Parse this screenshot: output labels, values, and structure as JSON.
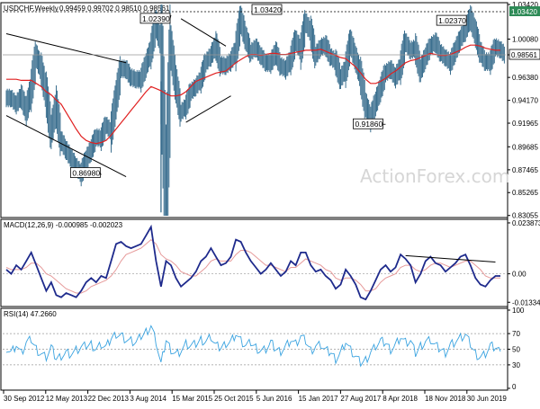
{
  "chart_data": {
    "type": "line",
    "header": {
      "symbol": "USDCHF,Weekly",
      "ohlc": "0.99459 0.99702 0.98510 0.98561"
    },
    "colors": {
      "bars": "#3b6f8f",
      "ma": "#e02020",
      "macd_line": "#1e2a8c",
      "macd_signal": "#e69a9a",
      "rsi": "#3aa3e0",
      "current_price_bg": "#ffffff",
      "top_level_bg": "#2e8b57"
    },
    "x_labels": [
      "30 Sep 2012",
      "12 May 2013",
      "22 Dec 2013",
      "3 Aug 2014",
      "15 Mar 2015",
      "25 Oct 2015",
      "5 Jun 2016",
      "15 Jan 2017",
      "27 Aug 2017",
      "8 Apr 2018",
      "18 Nov 2018",
      "30 Jun 2019"
    ],
    "price_panel": {
      "ylim": [
        0.8303,
        1.0342
      ],
      "y_ticks": [
        "1.03420",
        "1.00080",
        "0.98561",
        "0.96380",
        "0.94170",
        "0.91965",
        "0.89685",
        "0.87465",
        "0.85265",
        "0.83055"
      ],
      "y_tick_values": [
        1.0342,
        1.0008,
        0.98561,
        0.9638,
        0.9417,
        0.91965,
        0.89685,
        0.87465,
        0.85265,
        0.83055
      ],
      "current_price": "0.98561",
      "top_level": "1.03420",
      "annotations": [
        {
          "text": "1.02390",
          "x": 33,
          "y": 1.0239
        },
        {
          "text": "1.03420",
          "x": 55,
          "y": 1.0342
        },
        {
          "text": "1.02370",
          "x": 92,
          "y": 1.0237
        },
        {
          "text": "0.86980",
          "x": 19,
          "y": 0.8698
        },
        {
          "text": "0.91860",
          "x": 76,
          "y": 0.9186
        }
      ],
      "trendlines": [
        {
          "x": [
            0,
            24
          ],
          "y": [
            1.006,
            0.978
          ]
        },
        {
          "x": [
            0,
            24
          ],
          "y": [
            0.927,
            0.868
          ]
        },
        {
          "x": [
            35,
            44
          ],
          "y": [
            1.0205,
            0.994
          ]
        },
        {
          "x": [
            36,
            45
          ],
          "y": [
            0.9205,
            0.946
          ]
        }
      ],
      "close": [
        0.944,
        0.938,
        0.946,
        0.932,
        0.952,
        0.985,
        0.972,
        0.948,
        0.912,
        0.936,
        0.903,
        0.894,
        0.886,
        0.878,
        0.871,
        0.884,
        0.894,
        0.906,
        0.905,
        0.918,
        0.912,
        0.943,
        0.972,
        0.972,
        0.964,
        0.962,
        0.962,
        0.976,
        0.99,
        1.016,
        0.998,
        0.843,
        0.993,
        0.958,
        0.93,
        0.936,
        0.95,
        0.955,
        0.962,
        0.978,
        0.985,
        0.995,
        0.976,
        0.975,
        0.98,
        0.99,
        1.02,
        1.002,
        0.988,
        0.993,
        0.985,
        0.978,
        0.978,
        0.988,
        0.975,
        0.972,
        0.981,
        1.0,
        0.99,
        1.017,
        1.008,
        0.985,
        0.993,
        0.995,
        0.984,
        0.979,
        0.963,
        0.972,
        0.998,
        0.982,
        0.966,
        0.938,
        0.924,
        0.939,
        0.953,
        0.968,
        0.972,
        0.964,
        0.974,
        0.998,
        0.99,
        0.992,
        0.971,
        0.983,
        0.994,
        0.998,
        0.988,
        0.983,
        0.978,
        0.99,
        1.001,
        1.01,
        1.022,
        1.007,
        0.989,
        0.979,
        0.979,
        0.993,
        0.991,
        0.985
      ],
      "ma": [
        0.962,
        0.962,
        0.962,
        0.961,
        0.961,
        0.961,
        0.958,
        0.955,
        0.95,
        0.947,
        0.942,
        0.938,
        0.93,
        0.922,
        0.914,
        0.907,
        0.903,
        0.901,
        0.9,
        0.901,
        0.903,
        0.908,
        0.914,
        0.92,
        0.926,
        0.932,
        0.938,
        0.944,
        0.95,
        0.955,
        0.953,
        0.951,
        0.948,
        0.946,
        0.946,
        0.947,
        0.95,
        0.955,
        0.96,
        0.962,
        0.964,
        0.966,
        0.968,
        0.969,
        0.97,
        0.974,
        0.978,
        0.981,
        0.984,
        0.986,
        0.986,
        0.985,
        0.986,
        0.987,
        0.987,
        0.986,
        0.986,
        0.987,
        0.988,
        0.989,
        0.99,
        0.99,
        0.99,
        0.991,
        0.989,
        0.987,
        0.985,
        0.983,
        0.982,
        0.978,
        0.974,
        0.968,
        0.962,
        0.958,
        0.958,
        0.96,
        0.963,
        0.967,
        0.97,
        0.974,
        0.978,
        0.98,
        0.981,
        0.983,
        0.985,
        0.987,
        0.986,
        0.985,
        0.985,
        0.986,
        0.988,
        0.99,
        0.993,
        0.995,
        0.995,
        0.994,
        0.992,
        0.991,
        0.99,
        0.99
      ]
    },
    "macd_panel": {
      "label": "MACD(12,26,9) -0.000985 -0.002023",
      "ylim": [
        -0.0145,
        0.0247
      ],
      "y_ticks": [
        "0.023873",
        "0.00",
        "-0.013346"
      ],
      "y_tick_values": [
        0.023873,
        0.0,
        -0.013346
      ],
      "macd": [
        0.002,
        0.0,
        0.004,
        0.002,
        0.006,
        0.01,
        0.004,
        -0.002,
        -0.008,
        -0.004,
        -0.01,
        -0.011,
        -0.009,
        -0.01,
        -0.011,
        -0.008,
        -0.004,
        -0.002,
        -0.004,
        -0.001,
        -0.002,
        0.006,
        0.014,
        0.015,
        0.013,
        0.012,
        0.013,
        0.014,
        0.018,
        0.022,
        0.006,
        -0.006,
        0.006,
        0.004,
        -0.002,
        -0.006,
        -0.004,
        -0.002,
        0.001,
        0.006,
        0.008,
        0.012,
        0.008,
        0.004,
        0.005,
        0.008,
        0.016,
        0.015,
        0.01,
        0.006,
        0.003,
        0.0,
        0.002,
        0.005,
        0.002,
        -0.001,
        0.001,
        0.006,
        0.004,
        0.01,
        0.01,
        0.004,
        0.001,
        0.002,
        -0.001,
        -0.003,
        -0.007,
        -0.005,
        0.002,
        -0.001,
        -0.005,
        -0.011,
        -0.012,
        -0.008,
        -0.003,
        0.002,
        0.004,
        0.001,
        0.003,
        0.009,
        0.007,
        0.004,
        -0.004,
        0.0,
        0.006,
        0.008,
        0.005,
        0.004,
        0.001,
        0.003,
        0.005,
        0.008,
        0.009,
        0.004,
        -0.002,
        -0.005,
        -0.006,
        -0.003,
        -0.001,
        -0.001
      ],
      "signal": [
        0.003,
        0.002,
        0.002,
        0.002,
        0.003,
        0.005,
        0.005,
        0.003,
        0.0,
        -0.001,
        -0.003,
        -0.005,
        -0.007,
        -0.008,
        -0.009,
        -0.009,
        -0.008,
        -0.006,
        -0.005,
        -0.004,
        -0.003,
        -0.001,
        0.002,
        0.006,
        0.009,
        0.01,
        0.011,
        0.012,
        0.014,
        0.016,
        0.014,
        0.009,
        0.007,
        0.006,
        0.004,
        0.001,
        0.0,
        -0.001,
        -0.001,
        0.001,
        0.003,
        0.006,
        0.007,
        0.006,
        0.006,
        0.006,
        0.009,
        0.011,
        0.011,
        0.01,
        0.008,
        0.006,
        0.004,
        0.004,
        0.003,
        0.002,
        0.001,
        0.003,
        0.003,
        0.005,
        0.007,
        0.006,
        0.005,
        0.004,
        0.002,
        0.001,
        -0.002,
        -0.003,
        -0.002,
        -0.002,
        -0.003,
        -0.005,
        -0.008,
        -0.008,
        -0.007,
        -0.004,
        -0.002,
        -0.001,
        0.0,
        0.003,
        0.004,
        0.004,
        0.002,
        0.001,
        0.002,
        0.004,
        0.005,
        0.005,
        0.004,
        0.003,
        0.004,
        0.005,
        0.006,
        0.006,
        0.004,
        0.002,
        -0.001,
        -0.002,
        -0.002,
        -0.002
      ],
      "trendline": {
        "x": [
          80,
          98
        ],
        "y": [
          0.0085,
          0.0055
        ]
      }
    },
    "rsi_panel": {
      "label": "RSI(14) 47.2660",
      "ylim": [
        0,
        100
      ],
      "y_ticks": [
        "100",
        "70",
        "50",
        "30",
        "0"
      ],
      "y_tick_values": [
        100,
        70,
        50,
        30,
        0
      ],
      "dashed_levels": [
        70,
        50,
        30
      ],
      "rsi": [
        52,
        46,
        56,
        44,
        58,
        62,
        50,
        44,
        40,
        52,
        38,
        42,
        46,
        44,
        48,
        52,
        54,
        56,
        50,
        56,
        52,
        64,
        70,
        68,
        62,
        60,
        58,
        66,
        72,
        80,
        60,
        30,
        62,
        50,
        44,
        48,
        56,
        54,
        56,
        62,
        60,
        66,
        54,
        52,
        58,
        60,
        70,
        60,
        54,
        58,
        52,
        48,
        50,
        58,
        50,
        48,
        54,
        62,
        56,
        66,
        60,
        48,
        54,
        56,
        48,
        46,
        38,
        46,
        60,
        48,
        40,
        32,
        36,
        46,
        54,
        60,
        58,
        50,
        56,
        66,
        58,
        60,
        44,
        54,
        60,
        62,
        54,
        50,
        46,
        56,
        60,
        64,
        68,
        56,
        44,
        40,
        44,
        54,
        52,
        47
      ]
    }
  },
  "watermark": "ActionForex.com"
}
